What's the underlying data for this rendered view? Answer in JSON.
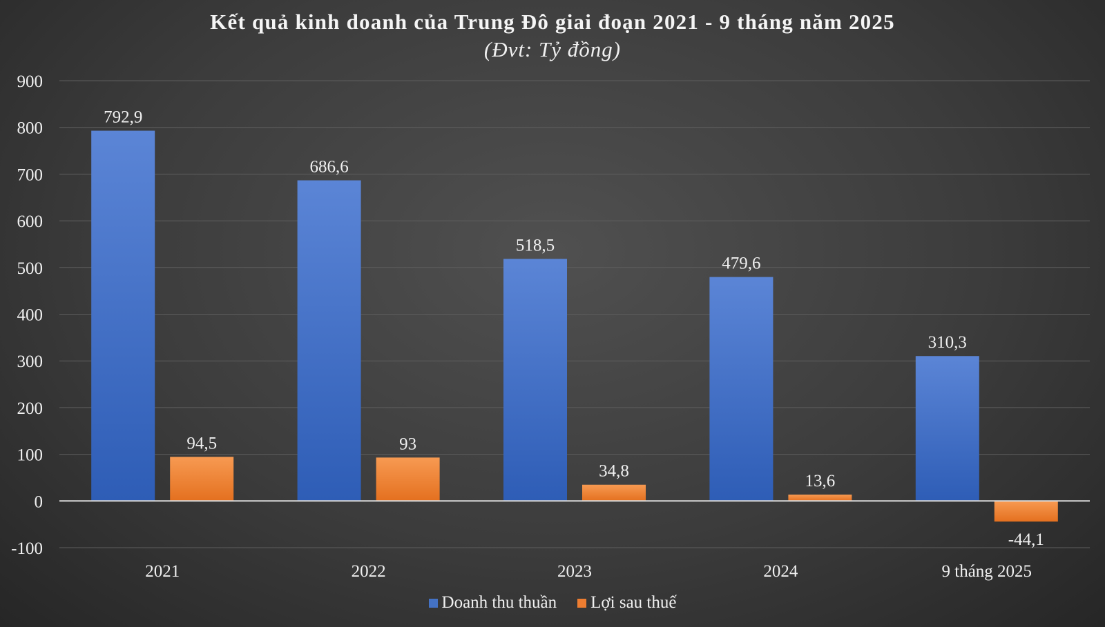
{
  "chart_data": {
    "type": "bar",
    "title": "Kết quả kinh doanh của Trung Đô giai đoạn 2021 - 9 tháng năm 2025",
    "subtitle": "(Đvt: Tỷ đồng)",
    "categories": [
      "2021",
      "2022",
      "2023",
      "2024",
      "9 tháng 2025"
    ],
    "series": [
      {
        "name": "Doanh thu thuần",
        "color": "#4472c4",
        "values": [
          792.9,
          686.6,
          518.5,
          479.6,
          310.3
        ],
        "labels": [
          "792,9",
          "686,6",
          "518,5",
          "479,6",
          "310,3"
        ]
      },
      {
        "name": "Lợi sau thuế",
        "color": "#ed7d31",
        "values": [
          94.5,
          93,
          34.8,
          13.6,
          -44.1
        ],
        "labels": [
          "94,5",
          "93",
          "34,8",
          "13,6",
          "-44,1"
        ]
      }
    ],
    "ylim": [
      -100,
      900
    ],
    "yticks": [
      -100,
      0,
      100,
      200,
      300,
      400,
      500,
      600,
      700,
      800,
      900
    ],
    "ytick_labels": [
      "-100",
      "0",
      "100",
      "200",
      "300",
      "400",
      "500",
      "600",
      "700",
      "800",
      "900"
    ],
    "xlabel": "",
    "ylabel": "",
    "grid": true,
    "legend_position": "bottom-center"
  }
}
